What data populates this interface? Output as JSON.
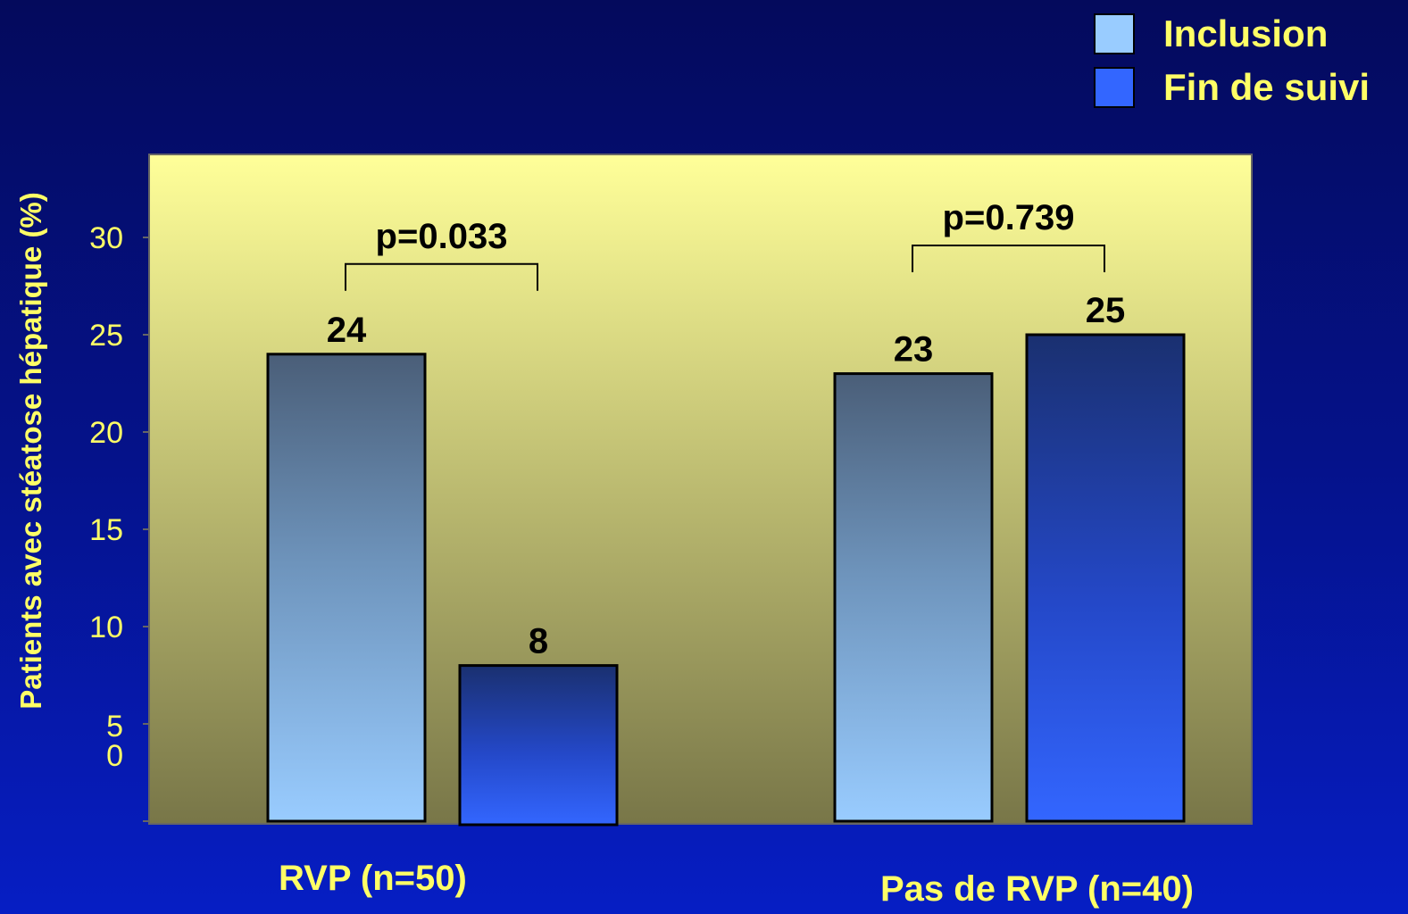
{
  "chart_data": {
    "type": "bar",
    "title": "",
    "ylabel": "Patients avec stéatose hépatique (%)",
    "xlabel": "",
    "ylim": [
      0,
      34
    ],
    "y_ticks": [
      "0",
      "5",
      "10",
      "15",
      "20",
      "25",
      "30"
    ],
    "categories": [
      "RVP (n=50)",
      "Pas de RVP (n=40)"
    ],
    "series": [
      {
        "name": "Inclusion",
        "values": [
          24,
          23
        ],
        "data_labels": [
          "24",
          "23"
        ]
      },
      {
        "name": "Fin de suivi",
        "values": [
          8,
          25
        ],
        "data_labels": [
          "8",
          "25"
        ]
      }
    ],
    "annotations": [
      {
        "text": "p=0.033",
        "category": "RVP (n=50)"
      },
      {
        "text": "p=0.739",
        "category": "Pas de RVP (n=40)"
      }
    ],
    "legend_position": "top-right",
    "grid": false,
    "colors": {
      "inclusion_top": "#4a5e78",
      "inclusion_bottom": "#99ccff",
      "fin_top": "#1a3070",
      "fin_bottom": "#3366ff",
      "plot_bg_top": "#ffff99",
      "plot_bg_bottom": "#787648",
      "label_text": "#ffff66"
    }
  }
}
